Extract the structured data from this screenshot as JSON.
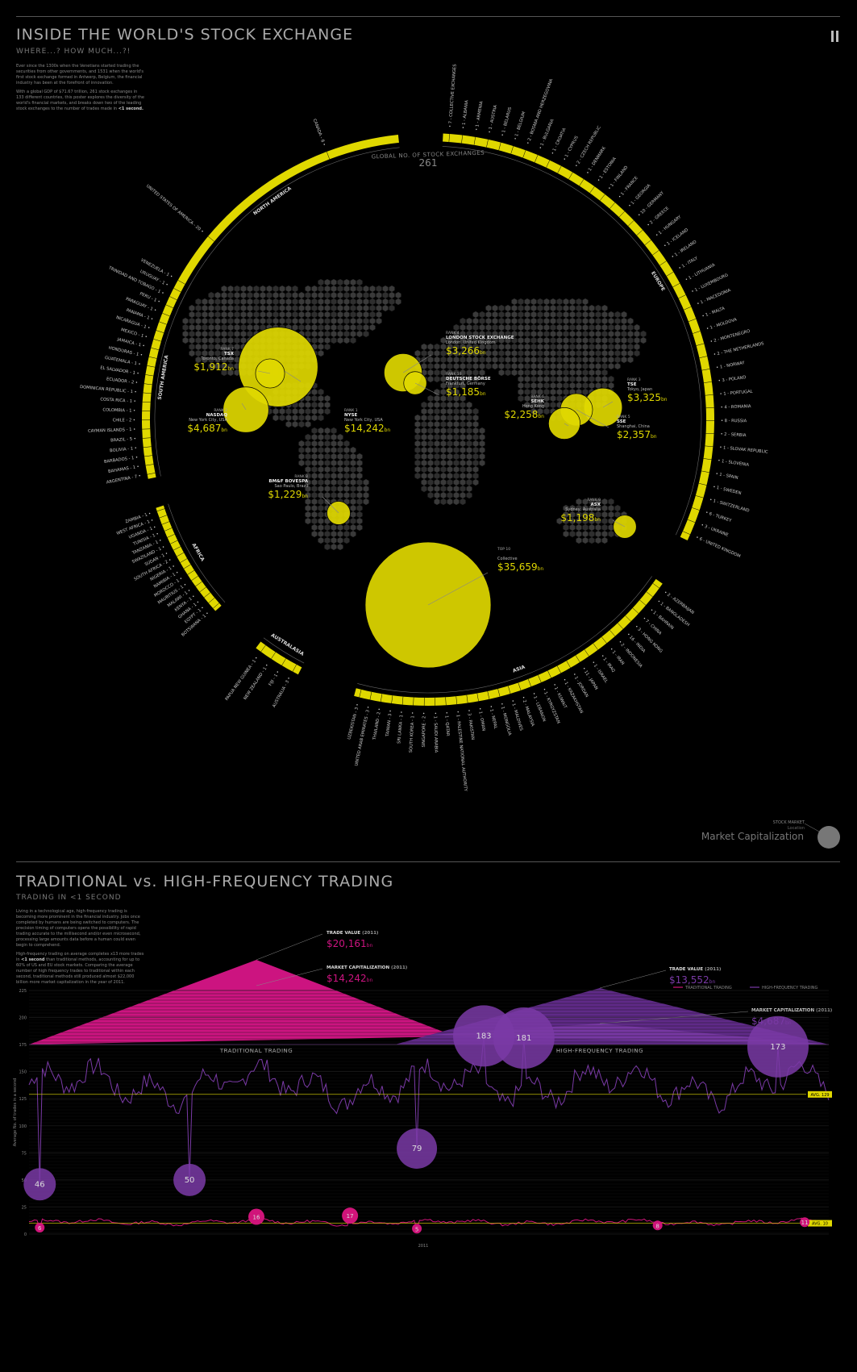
{
  "header": {
    "title": "INSIDE THE WORLD'S STOCK EXCHANGE",
    "subtitle": "WHERE...? HOW MUCH...?!",
    "intro_p1": "Ever since the 1300s when the Venetians started trading the securities from other governments, and 1531 when the world's first stock exchange formed in Antwerp, Belgium, the financial industry has been at the forefront of innovation.",
    "intro_p2": "With a global GDP of $71.67 trillion, 261 stock exchanges in 133 different countries, this poster explores the diversity of the world's financial markets, and breaks down two of the leading stock exchanges to the number of trades made in",
    "intro_p2_bold": "<1 second."
  },
  "globe": {
    "center_label": "GLOBAL NO. OF STOCK EXCHANGES",
    "center_value": "261",
    "legend_caption": "STOCK MARKET",
    "legend_location": "Location",
    "legend_title": "Market Capitalization"
  },
  "regions": [
    {
      "name": "NORTH AMERICA",
      "countries": [
        {
          "label": "UNITED STATES OF AMERICA",
          "count": "20"
        },
        {
          "label": "CANADA",
          "count": "8"
        }
      ]
    },
    {
      "name": "EUROPE",
      "countries": [
        {
          "label": "COLLECTIVE EXCHANGES",
          "count": "7"
        },
        {
          "label": "ALBANIA",
          "count": "1"
        },
        {
          "label": "ARMENIA",
          "count": "1"
        },
        {
          "label": "AUSTRIA",
          "count": "1"
        },
        {
          "label": "BELARUS",
          "count": "1"
        },
        {
          "label": "BELGIUM",
          "count": "1"
        },
        {
          "label": "BOSNIA AND HERZEGOVINA",
          "count": "2"
        },
        {
          "label": "BULGARIA",
          "count": "1"
        },
        {
          "label": "CROATIA",
          "count": "1"
        },
        {
          "label": "CYPRUS",
          "count": "1"
        },
        {
          "label": "CZECH REPUBLIC",
          "count": "2"
        },
        {
          "label": "DENMARK",
          "count": "1"
        },
        {
          "label": "ESTONIA",
          "count": "1"
        },
        {
          "label": "FINLAND",
          "count": "1"
        },
        {
          "label": "FRANCE",
          "count": "1"
        },
        {
          "label": "GEORGIA",
          "count": "1"
        },
        {
          "label": "GERMANY",
          "count": "10"
        },
        {
          "label": "GREECE",
          "count": "2"
        },
        {
          "label": "HUNGARY",
          "count": "1"
        },
        {
          "label": "ICELAND",
          "count": "1"
        },
        {
          "label": "IRELAND",
          "count": "1"
        },
        {
          "label": "ITALY",
          "count": "1"
        },
        {
          "label": "LITHUANIA",
          "count": "1"
        },
        {
          "label": "LUXEMBOURG",
          "count": "1"
        },
        {
          "label": "MACEDONIA",
          "count": "1"
        },
        {
          "label": "MALTA",
          "count": "1"
        },
        {
          "label": "MOLDOVA",
          "count": "1"
        },
        {
          "label": "MONTENEGRO",
          "count": "2"
        },
        {
          "label": "THE NETHERLANDS",
          "count": "2"
        },
        {
          "label": "NORWAY",
          "count": "1"
        },
        {
          "label": "POLAND",
          "count": "3"
        },
        {
          "label": "PORTUGAL",
          "count": "1"
        },
        {
          "label": "ROMANIA",
          "count": "4"
        },
        {
          "label": "RUSSIA",
          "count": "8"
        },
        {
          "label": "SERBIA",
          "count": "2"
        },
        {
          "label": "SLOVAK REPUBLIC",
          "count": "1"
        },
        {
          "label": "SLOVENIA",
          "count": "1"
        },
        {
          "label": "SPAIN",
          "count": "1"
        },
        {
          "label": "SWEDEN",
          "count": "1"
        },
        {
          "label": "SWITZERLAND",
          "count": "1"
        },
        {
          "label": "TURKEY",
          "count": "6"
        },
        {
          "label": "UKRAINE",
          "count": "3"
        },
        {
          "label": "UNITED KINGDOM",
          "count": "6"
        }
      ]
    },
    {
      "name": "ASIA",
      "countries": [
        {
          "label": "AZERBAIJAN",
          "count": "2"
        },
        {
          "label": "BANGLADESH",
          "count": "1"
        },
        {
          "label": "BAHRAIN",
          "count": "1"
        },
        {
          "label": "CHINA",
          "count": "7"
        },
        {
          "label": "HONG KONG",
          "count": "3"
        },
        {
          "label": "INDIA",
          "count": "16"
        },
        {
          "label": "INDONESIA",
          "count": "2"
        },
        {
          "label": "IRAN",
          "count": "1"
        },
        {
          "label": "IRAQ",
          "count": "1"
        },
        {
          "label": "ISRAEL",
          "count": "1"
        },
        {
          "label": "JAPAN",
          "count": "11"
        },
        {
          "label": "JORDAN",
          "count": "1"
        },
        {
          "label": "KAZAKHSTAN",
          "count": "1"
        },
        {
          "label": "KUWAIT",
          "count": "1"
        },
        {
          "label": "KYRGYZSTAN",
          "count": "1"
        },
        {
          "label": "LEBANON",
          "count": "1"
        },
        {
          "label": "MALAYSIA",
          "count": "2"
        },
        {
          "label": "MALDIVES",
          "count": "1"
        },
        {
          "label": "MONGOLIA",
          "count": "1"
        },
        {
          "label": "NEPAL",
          "count": "1"
        },
        {
          "label": "OMAN",
          "count": "1"
        },
        {
          "label": "PAKISTAN",
          "count": "3"
        },
        {
          "label": "PALESTINE NATIONAL AUTHORITY",
          "count": "1"
        },
        {
          "label": "QATAR",
          "count": "1"
        },
        {
          "label": "SAUDI ARABIA",
          "count": "1"
        },
        {
          "label": "SINGAPORE",
          "count": "2"
        },
        {
          "label": "SOUTH KOREA",
          "count": "1"
        },
        {
          "label": "SRI LANKA",
          "count": "1"
        },
        {
          "label": "TAIWAN",
          "count": "3"
        },
        {
          "label": "THAILAND",
          "count": "2"
        },
        {
          "label": "UNITED ARAB EMIRATES",
          "count": "3"
        },
        {
          "label": "UZBEKISTAN",
          "count": "3"
        }
      ]
    },
    {
      "name": "AUSTRALASIA",
      "countries": [
        {
          "label": "AUSTRALIA",
          "count": "3"
        },
        {
          "label": "FIJI",
          "count": "1"
        },
        {
          "label": "NEW ZEALAND",
          "count": "1"
        },
        {
          "label": "PAPUA NEW GUINEA",
          "count": "1"
        }
      ]
    },
    {
      "name": "AFRICA",
      "countries": [
        {
          "label": "BOTSWANA",
          "count": "1"
        },
        {
          "label": "EGYPT",
          "count": "1"
        },
        {
          "label": "GHANA",
          "count": "1"
        },
        {
          "label": "KENYA",
          "count": "1"
        },
        {
          "label": "MALAWI",
          "count": "1"
        },
        {
          "label": "MAURITIUS",
          "count": "1"
        },
        {
          "label": "MOROCCO",
          "count": "1"
        },
        {
          "label": "NAMIBIA",
          "count": "1"
        },
        {
          "label": "NIGERIA",
          "count": "1"
        },
        {
          "label": "SOUTH AFRICA",
          "count": "2"
        },
        {
          "label": "SUDAN",
          "count": "1"
        },
        {
          "label": "SWAZILAND",
          "count": "1"
        },
        {
          "label": "TANZANIA",
          "count": "1"
        },
        {
          "label": "TUNISIA",
          "count": "1"
        },
        {
          "label": "UGANDA",
          "count": "1"
        },
        {
          "label": "WEST AFRICA",
          "count": "1"
        },
        {
          "label": "ZAMBIA",
          "count": "1"
        }
      ]
    },
    {
      "name": "SOUTH AMERICA",
      "countries": [
        {
          "label": "ARGENTINA",
          "count": "7"
        },
        {
          "label": "BAHAMAS",
          "count": "1"
        },
        {
          "label": "BARBADOS",
          "count": "1"
        },
        {
          "label": "BOLIVIA",
          "count": "1"
        },
        {
          "label": "BRAZIL",
          "count": "5"
        },
        {
          "label": "CAYMAN ISLANDS",
          "count": "1"
        },
        {
          "label": "CHILE",
          "count": "2"
        },
        {
          "label": "COLOMBIA",
          "count": "1"
        },
        {
          "label": "COSTA RICA",
          "count": "1"
        },
        {
          "label": "DOMINICAN REPUBLIC",
          "count": "1"
        },
        {
          "label": "ECUADOR",
          "count": "2"
        },
        {
          "label": "EL SALVADOR",
          "count": "1"
        },
        {
          "label": "GUATEMALA",
          "count": "1"
        },
        {
          "label": "HONDURAS",
          "count": "1"
        },
        {
          "label": "JAMAICA",
          "count": "1"
        },
        {
          "label": "MEXICO",
          "count": "1"
        },
        {
          "label": "NICARAGUA",
          "count": "1"
        },
        {
          "label": "PANAMA",
          "count": "1"
        },
        {
          "label": "PARAGUAY",
          "count": "1"
        },
        {
          "label": "PERU",
          "count": "1"
        },
        {
          "label": "TRINIDAD AND TOBAGO",
          "count": "1"
        },
        {
          "label": "URUGUAY",
          "count": "1"
        },
        {
          "label": "VENEZUELA",
          "count": "1"
        }
      ]
    }
  ],
  "exchanges": [
    {
      "rank": "RANK 1",
      "code": "NYSE",
      "city": "New York City, USA",
      "value": "14,242",
      "unit": "bn"
    },
    {
      "rank": "RANK 2",
      "code": "NASDAQ",
      "city": "New York City, USA",
      "value": "4,687",
      "unit": "bn"
    },
    {
      "rank": "RANK 3",
      "code": "TSE",
      "city": "Tokyo, Japan",
      "value": "3,325",
      "unit": "bn"
    },
    {
      "rank": "RANK 4",
      "code": "LONDON STOCK EXCHANGE",
      "city": "London, United Kingdom",
      "value": "3,266",
      "unit": "bn"
    },
    {
      "rank": "RANK 5",
      "code": "SSE",
      "city": "Shanghai, China",
      "value": "2,357",
      "unit": "bn"
    },
    {
      "rank": "RANK 6",
      "code": "SEHK",
      "city": "Hong Kong",
      "value": "2,258",
      "unit": "bn"
    },
    {
      "rank": "RANK 7",
      "code": "TSX",
      "city": "Toronto, Canada",
      "value": "1,912",
      "unit": "bn"
    },
    {
      "rank": "RANK 8",
      "code": "BM&F BOVESPA",
      "city": "Sao Paulo, Brazil",
      "value": "1,229",
      "unit": "bn"
    },
    {
      "rank": "RANK 9",
      "code": "ASX",
      "city": "Sydney, Australia",
      "value": "1,198",
      "unit": "bn"
    },
    {
      "rank": "RANK 10",
      "code": "DEUTSCHE BÖRSE",
      "city": "Frankfurt, Germany",
      "value": "1,185",
      "unit": "bn"
    },
    {
      "rank": "TOP 10",
      "code": "",
      "city": "Collective",
      "value": "35,659",
      "unit": "bn"
    }
  ],
  "hft": {
    "title": "TRADITIONAL vs. HIGH-FREQUENCY TRADING",
    "subtitle": "TRADING IN <1 SECOND",
    "intro_p1": "Living in a technological age, high-frequency trading is becoming more prominent in the financial industry. Jobs once completed by humans are being switched to computers. The precision timing of computers opens the possibility of rapid trading accurate to the millisecond and/or even microsecond, processing large amounts data before a human could even begin to comprehend.",
    "intro_p2a": "High-frequency trading on average completes x13 more trades in",
    "intro_p2_bold": "<1 second",
    "intro_p2b": "than traditional methods, accounting for up to 60% of US and EU stock markets. Comparing the average number of high frequency trades to traditional within each second, traditional methods still produced almost $22,000 billion more market capitalization in the year of 2011.",
    "trad_trade_label": "TRADE VALUE",
    "trad_trade_year": "(2011)",
    "trad_trade_value": "20,161",
    "trad_cap_label": "MARKET CAPITALIZATION",
    "trad_cap_year": "(2011)",
    "trad_cap_value": "14,242",
    "hft_trade_label": "TRADE VALUE",
    "hft_trade_year": "(2011)",
    "hft_trade_value": "13,552",
    "hft_cap_label": "MARKET CAPITALIZATION",
    "hft_cap_year": "(2011)",
    "hft_cap_value": "4,687",
    "unit": "bn",
    "trad_caption": "TRADITIONAL TRADING",
    "hft_caption": "HIGH-FREQUENCY TRADING"
  },
  "chart_data": {
    "type": "line",
    "ylabel": "Average No. of trades in a second",
    "xlabel": "2011",
    "ylim": [
      0,
      225
    ],
    "yticks": [
      0,
      25,
      50,
      75,
      100,
      125,
      150,
      175,
      200,
      225
    ],
    "legend": [
      "TRADITIONAL TRADING",
      "HIGH-FREQUENCY TRADING"
    ],
    "legend_position": "top-right",
    "series": [
      {
        "name": "HIGH-FREQUENCY TRADING",
        "color": "#7a3aa6",
        "average": 129,
        "average_label": "AVG. 129",
        "min": 46,
        "max": 183,
        "annotations": [
          46,
          50,
          79,
          183,
          181,
          173
        ]
      },
      {
        "name": "TRADITIONAL TRADING",
        "color": "#d0147a",
        "average": 10,
        "average_label": "AVG. 10",
        "min": 5,
        "max": 17,
        "annotations": [
          6,
          16,
          17,
          5,
          8,
          11
        ]
      }
    ]
  },
  "colors": {
    "accent": "#e0d800",
    "traditional": "#cc1480",
    "hft": "#6a2f94"
  }
}
